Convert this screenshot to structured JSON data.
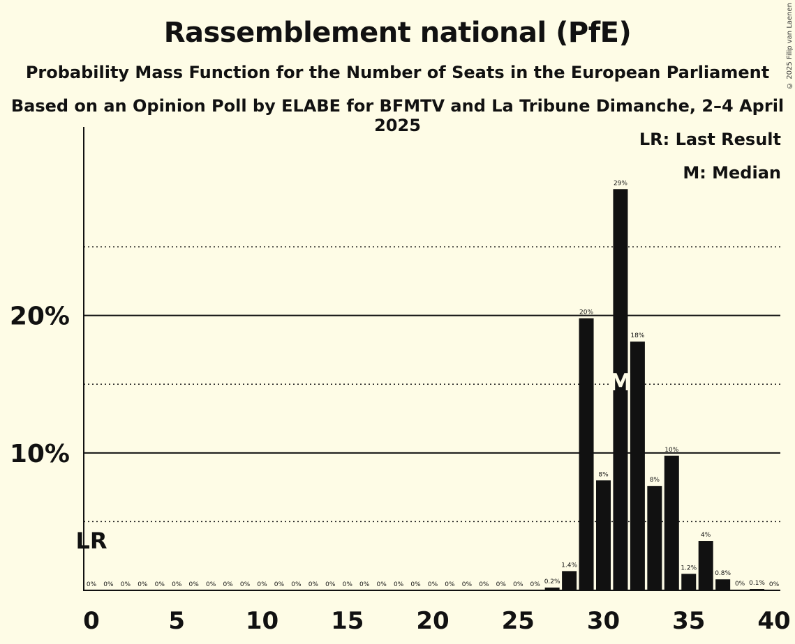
{
  "chart_data": {
    "type": "bar",
    "title": "Rassemblement national (PfE)",
    "subtitle": "Probability Mass Function for the Number of Seats in the European Parliament",
    "subtitle2": "Based on an Opinion Poll by ELABE for BFMTV and La Tribune Dimanche, 2–4 April 2025",
    "copyright": "© 2025 Filip van Laenen",
    "legend": {
      "last_result": "LR: Last Result",
      "median": "M: Median"
    },
    "last_result_marker": {
      "label": "LR",
      "seats": 0
    },
    "median_marker": {
      "label": "M",
      "seats": 31
    },
    "x": [
      0,
      1,
      2,
      3,
      4,
      5,
      6,
      7,
      8,
      9,
      10,
      11,
      12,
      13,
      14,
      15,
      16,
      17,
      18,
      19,
      20,
      21,
      22,
      23,
      24,
      25,
      26,
      27,
      28,
      29,
      30,
      31,
      32,
      33,
      34,
      35,
      36,
      37,
      38,
      39,
      40
    ],
    "values": [
      0,
      0,
      0,
      0,
      0,
      0,
      0,
      0,
      0,
      0,
      0,
      0,
      0,
      0,
      0,
      0,
      0,
      0,
      0,
      0,
      0,
      0,
      0,
      0,
      0,
      0,
      0,
      0.2,
      1.4,
      19.8,
      8.0,
      29.2,
      18.1,
      7.6,
      9.8,
      1.2,
      3.6,
      0.8,
      0.05,
      0.1,
      0
    ],
    "data_labels": [
      "0%",
      "0%",
      "0%",
      "0%",
      "0%",
      "0%",
      "0%",
      "0%",
      "0%",
      "0%",
      "0%",
      "0%",
      "0%",
      "0%",
      "0%",
      "0%",
      "0%",
      "0%",
      "0%",
      "0%",
      "0%",
      "0%",
      "0%",
      "0%",
      "0%",
      "0%",
      "0%",
      "0.2%",
      "1.4%",
      "20%",
      "8%",
      "29%",
      "18%",
      "8%",
      "10%",
      "1.2%",
      "4%",
      "0.8%",
      "0%",
      "0.1%",
      "0%"
    ],
    "x_ticks": [
      0,
      5,
      10,
      15,
      20,
      25,
      30,
      35,
      40
    ],
    "y_ticks": [
      {
        "value": 10,
        "label": "10%"
      },
      {
        "value": 20,
        "label": "20%"
      }
    ],
    "y_dotted_gridlines": [
      5,
      15,
      25
    ],
    "xlim": [
      0,
      40
    ],
    "ylim": [
      0,
      31.7
    ],
    "colors": {
      "bar": "#111111",
      "background": "#fefce6",
      "median_label": "#fefce6"
    }
  }
}
